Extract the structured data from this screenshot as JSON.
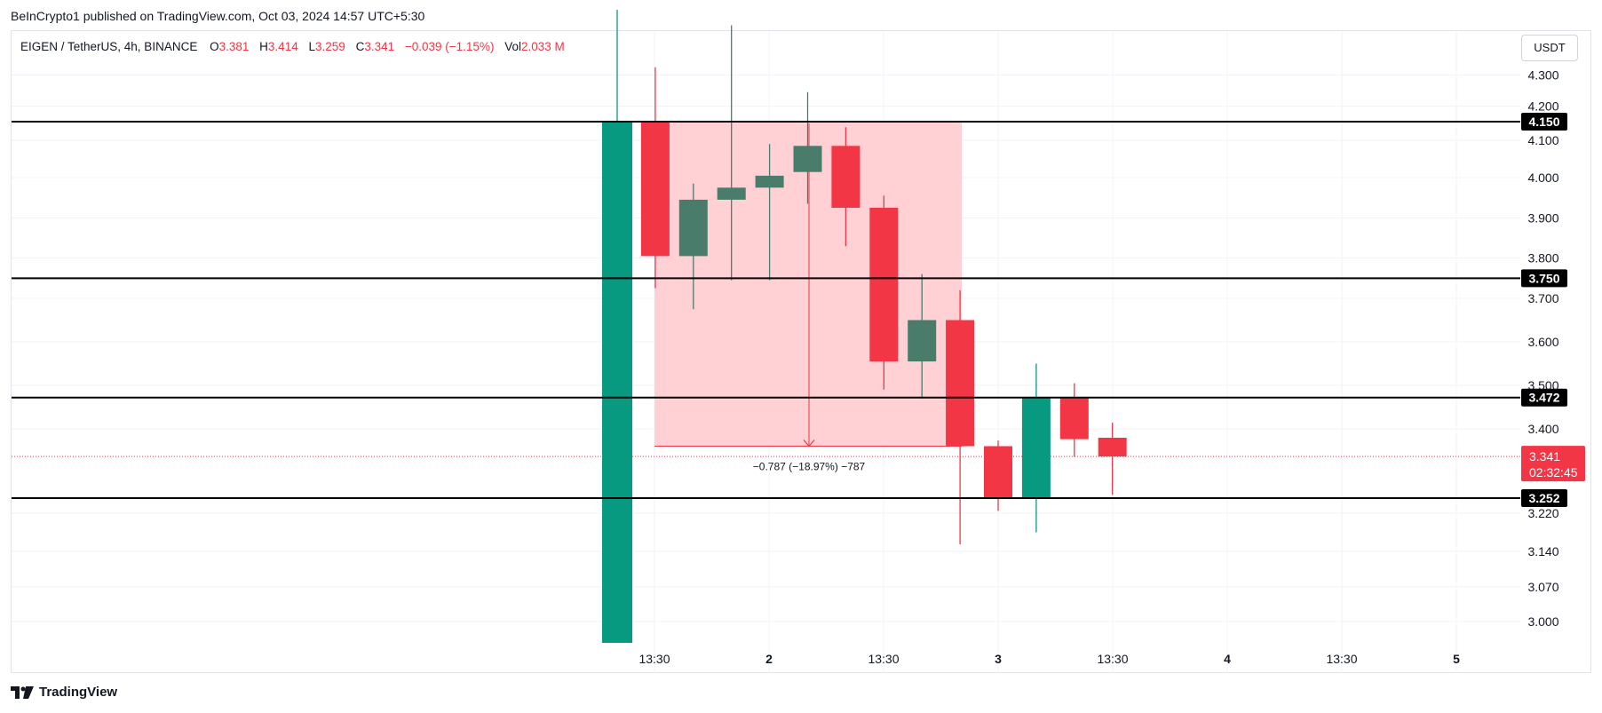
{
  "header": {
    "published_by": "BeInCrypto1 published on TradingView.com, Oct 03, 2024 14:57 UTC+5:30"
  },
  "legend": {
    "symbol": "EIGEN / TetherUS, 4h, BINANCE",
    "open_label": "O",
    "open": "3.381",
    "high_label": "H",
    "high": "3.414",
    "low_label": "L",
    "low": "3.259",
    "close_label": "C",
    "close": "3.341",
    "change": "−0.039 (−1.15%)",
    "vol_label": "Vol",
    "vol": "2.033 M"
  },
  "currency_button": "USDT",
  "footer": {
    "brand": "TradingView"
  },
  "colors": {
    "up": "#089981",
    "up_dark": "#4a7c6b",
    "down": "#f23645",
    "range_fill": "#ffcdd2",
    "level_line": "#000000",
    "grid": "#f0f3fa"
  },
  "icons": {
    "brand": "tradingview-logo-icon",
    "measure_arrow": "arrow-down-icon"
  },
  "chart_data": {
    "type": "candlestick",
    "y_axis_ticks": [
      "4.300",
      "4.200",
      "4.100",
      "4.000",
      "3.900",
      "3.800",
      "3.700",
      "3.600",
      "3.500",
      "3.400",
      "3.220",
      "3.140",
      "3.070",
      "3.000"
    ],
    "x_axis_ticks": [
      "13:30",
      "2",
      "13:30",
      "3",
      "13:30",
      "4",
      "13:30",
      "5"
    ],
    "candles": [
      {
        "o": 2.955,
        "h": 4.51,
        "l": 2.955,
        "c": 4.15,
        "tone": "up"
      },
      {
        "o": 4.15,
        "h": 4.325,
        "l": 3.725,
        "c": 3.805,
        "tone": "down"
      },
      {
        "o": 3.805,
        "h": 3.985,
        "l": 3.675,
        "c": 3.945,
        "tone": "up_dark"
      },
      {
        "o": 3.945,
        "h": 4.46,
        "l": 3.745,
        "c": 3.975,
        "tone": "up_dark"
      },
      {
        "o": 3.975,
        "h": 4.09,
        "l": 3.745,
        "c": 4.005,
        "tone": "up_dark"
      },
      {
        "o": 4.015,
        "h": 4.245,
        "l": 3.935,
        "c": 4.085,
        "tone": "up_dark"
      },
      {
        "o": 4.085,
        "h": 4.135,
        "l": 3.83,
        "c": 3.925,
        "tone": "down"
      },
      {
        "o": 3.925,
        "h": 3.955,
        "l": 3.49,
        "c": 3.555,
        "tone": "down"
      },
      {
        "o": 3.555,
        "h": 3.76,
        "l": 3.47,
        "c": 3.65,
        "tone": "up_dark"
      },
      {
        "o": 3.65,
        "h": 3.72,
        "l": 3.155,
        "c": 3.363,
        "tone": "down"
      },
      {
        "o": 3.363,
        "h": 3.375,
        "l": 3.225,
        "c": 3.252,
        "tone": "down"
      },
      {
        "o": 3.252,
        "h": 3.55,
        "l": 3.18,
        "c": 3.472,
        "tone": "up"
      },
      {
        "o": 3.472,
        "h": 3.505,
        "l": 3.34,
        "c": 3.378,
        "tone": "down"
      },
      {
        "o": 3.381,
        "h": 3.414,
        "l": 3.259,
        "c": 3.341,
        "tone": "down"
      }
    ],
    "levels": [
      {
        "value": 4.15,
        "label": "4.150"
      },
      {
        "value": 3.75,
        "label": "3.750"
      },
      {
        "value": 3.472,
        "label": "3.472"
      },
      {
        "value": 3.252,
        "label": "3.252"
      }
    ],
    "current_price": {
      "label": "3.341",
      "countdown": "02:32:45",
      "value": 3.341
    },
    "measure": {
      "top": 4.15,
      "bottom": 3.363,
      "label": "−0.787 (−18.97%) −787"
    },
    "grid": true
  }
}
